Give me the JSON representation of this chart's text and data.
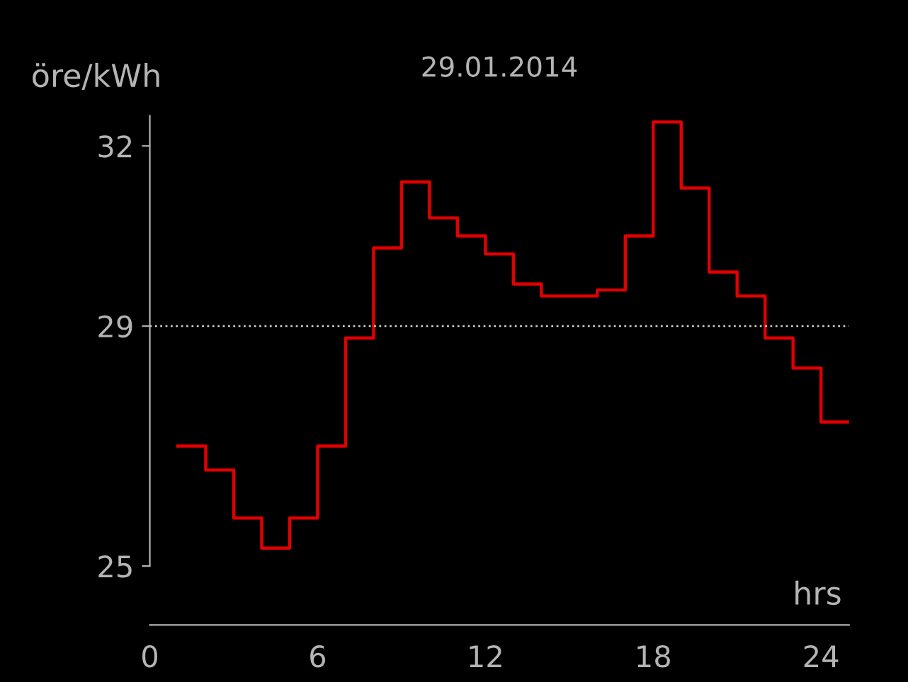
{
  "chart_data": {
    "type": "step",
    "title": "29.01.2014",
    "ylabel": "öre/kWh",
    "xlabel": "hrs",
    "x": [
      1,
      2,
      3,
      4,
      5,
      6,
      7,
      8,
      9,
      10,
      11,
      12,
      13,
      14,
      15,
      16,
      17,
      18,
      19,
      20,
      21,
      22,
      23,
      24,
      25
    ],
    "series": [
      {
        "color": "#e00000",
        "values": [
          27.0,
          26.6,
          25.8,
          25.3,
          25.8,
          27.0,
          28.8,
          30.3,
          31.4,
          30.8,
          30.5,
          30.2,
          29.7,
          29.5,
          29.5,
          29.6,
          30.5,
          32.4,
          31.3,
          29.9,
          29.5,
          28.8,
          28.3,
          27.4,
          27.4
        ]
      }
    ],
    "xlim": [
      0,
      25
    ],
    "xticks": [
      0,
      6,
      12,
      18,
      24
    ],
    "ylim": [
      25,
      32.5
    ],
    "yticks": [
      25,
      29,
      32
    ],
    "ref_lines": [
      {
        "axis": "y",
        "value": 29,
        "color": "#c8c8c8",
        "line_style": "dotted"
      }
    ],
    "grid": false,
    "legend": false,
    "line_style": "solid",
    "marker": "none"
  }
}
